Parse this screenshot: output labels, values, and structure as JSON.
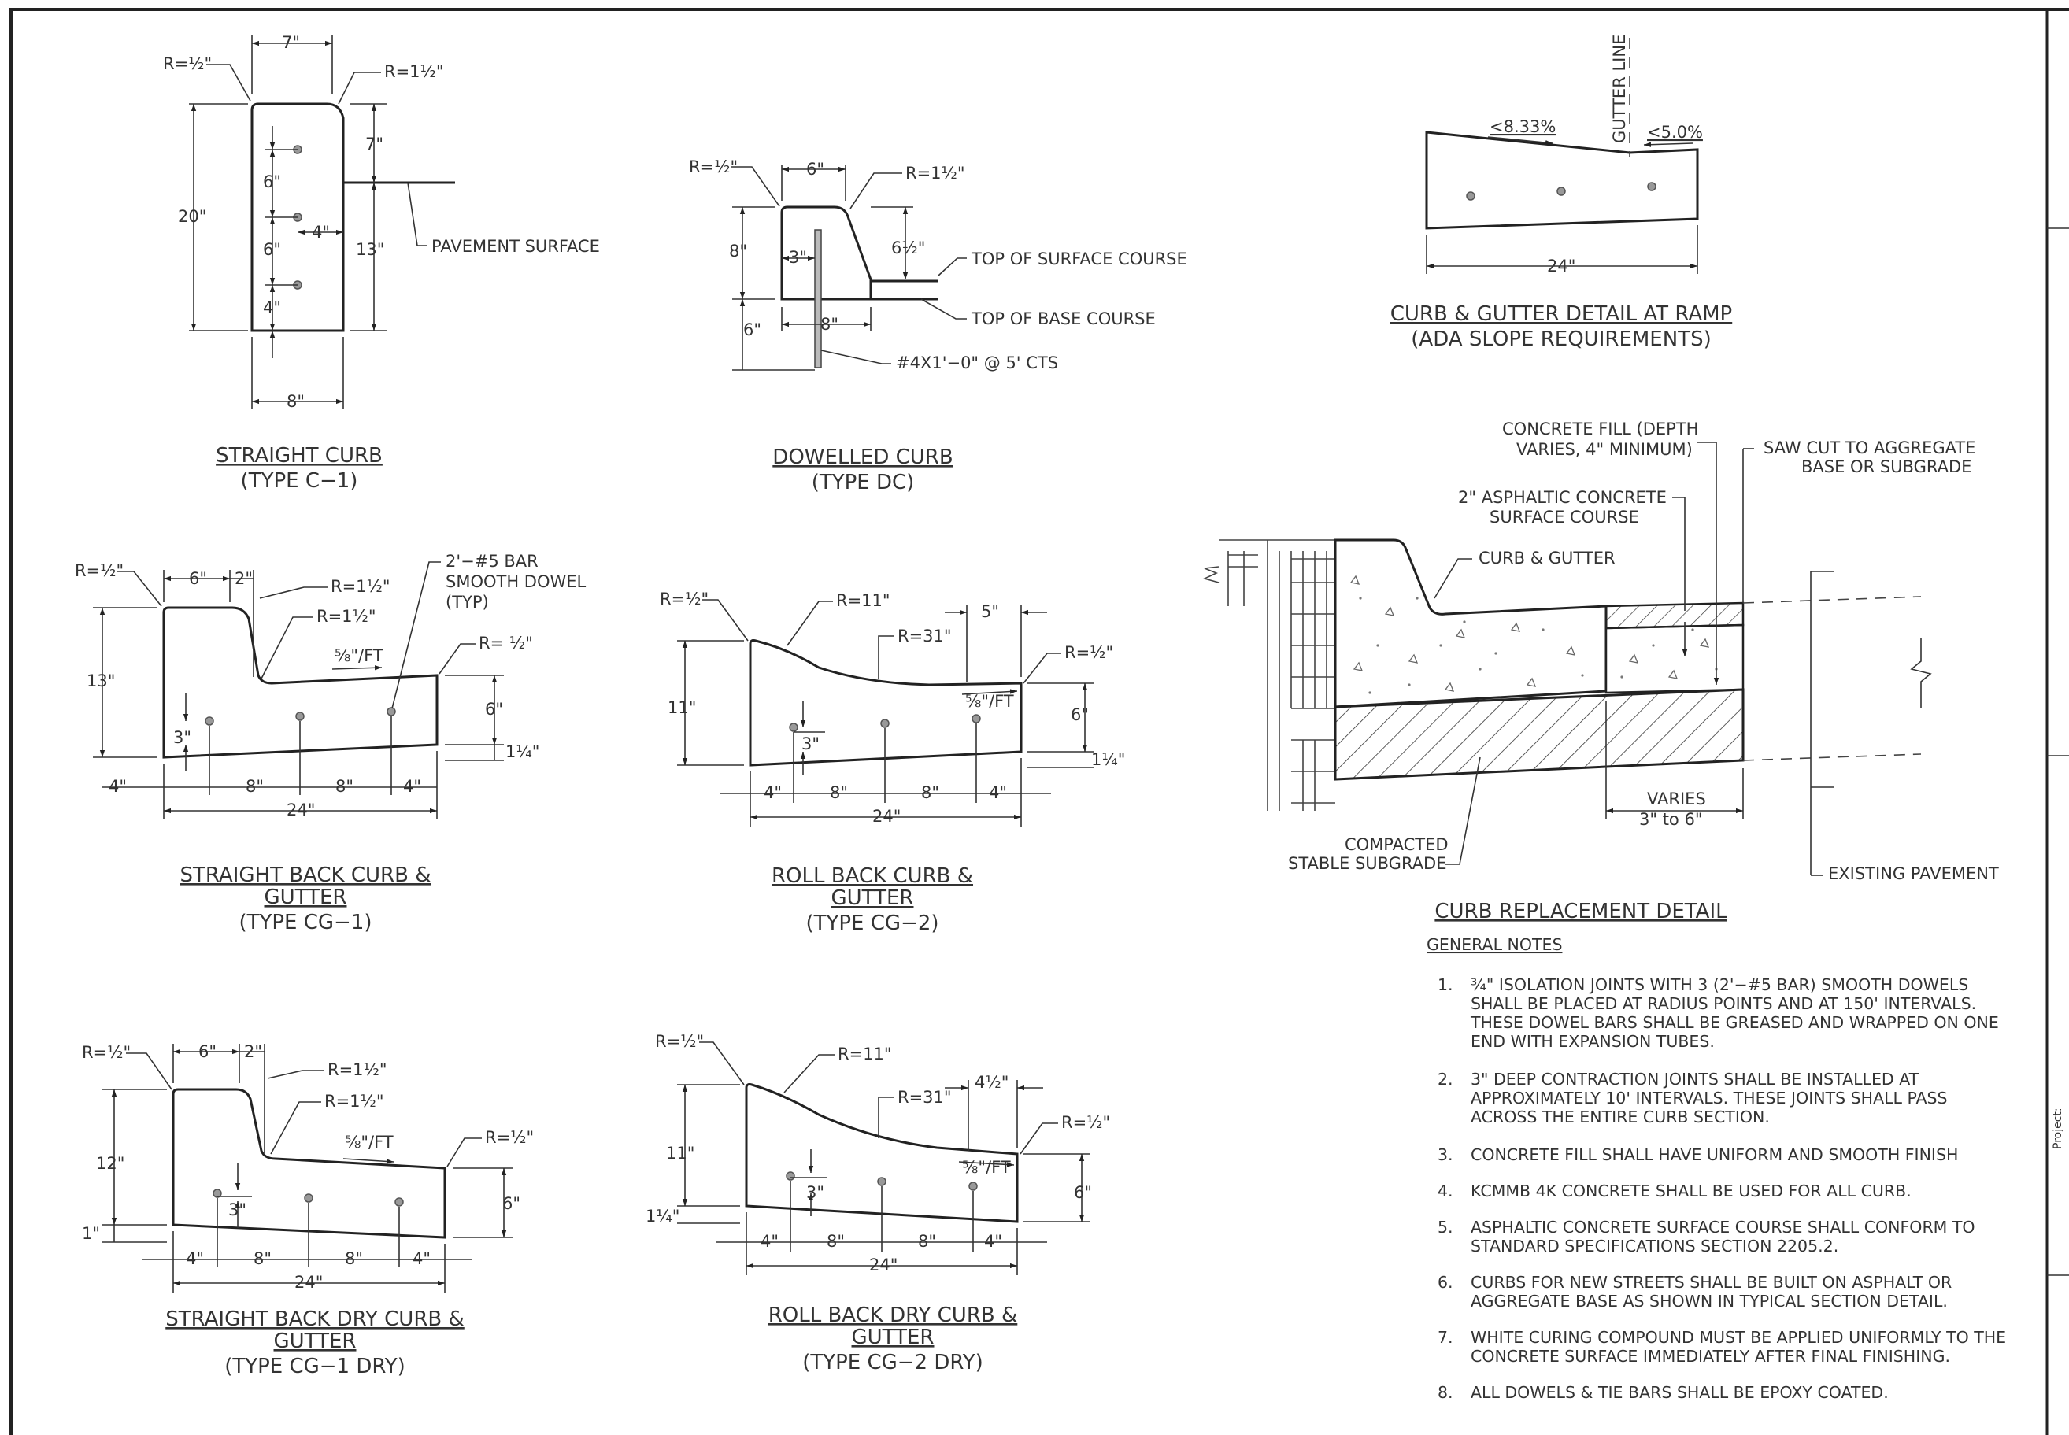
{
  "straight_curb": {
    "title": "STRAIGHT CURB",
    "subtitle": "(TYPE C−1)",
    "r_left": "R=½\"",
    "r_right": "R=1½\"",
    "top_width": "7\"",
    "height": "20\"",
    "d_7": "7\"",
    "d_6a": "6\"",
    "d_6b": "6\"",
    "d_4a": "4\"",
    "d_4b": "4\"",
    "d_13": "13\"",
    "base": "8\"",
    "pavement": "PAVEMENT SURFACE"
  },
  "dowelled_curb": {
    "title": "DOWELLED CURB",
    "subtitle": "(TYPE DC)",
    "r_left": "R=½\"",
    "r_right": "R=1½\"",
    "top_width": "6\"",
    "d_8": "8\"",
    "d_3": "3\"",
    "d_6": "6\"",
    "d_6half": "6½\"",
    "base": "8\"",
    "top_surface": "TOP OF SURFACE COURSE",
    "top_base": "TOP OF BASE COURSE",
    "dowel": "#4X1'−0\" @ 5' CTS"
  },
  "ramp": {
    "title": "CURB & GUTTER DETAIL AT RAMP",
    "subtitle": "(ADA SLOPE REQUIREMENTS)",
    "slope_left": "<8.33%",
    "slope_right": "<5.0%",
    "gutter_line": "GUTTER LINE",
    "width": "24\""
  },
  "cg1": {
    "title": "STRAIGHT BACK CURB &",
    "title2": "GUTTER",
    "subtitle": "(TYPE CG−1)",
    "r_left": "R=½\"",
    "d_6": "6\"",
    "d_2": "2\"",
    "r1": "R=1½\"",
    "r2": "R=1½\"",
    "bar": "2'−#5 BAR",
    "bar2": "SMOOTH DOWEL",
    "bar3": "(TYP)",
    "r_right": "R= ½\"",
    "slope": "⅝\"/FT",
    "d_13": "13\"",
    "d_3": "3\"",
    "d_6r": "6\"",
    "d_114": "1¼\"",
    "b1": "4\"",
    "b2": "8\"",
    "b3": "8\"",
    "b4": "4\"",
    "total": "24\""
  },
  "cg2": {
    "title": "ROLL BACK CURB &",
    "title2": "GUTTER",
    "subtitle": "(TYPE CG−2)",
    "r_left": "R=½\"",
    "r11": "R=11\"",
    "r31": "R=31\"",
    "d_5": "5\"",
    "r_right": "R=½\"",
    "slope": "⅝\"/FT",
    "d_11": "11\"",
    "d_3": "3\"",
    "d_6": "6\"",
    "d_114": "1¼\"",
    "b1": "4\"",
    "b2": "8\"",
    "b3": "8\"",
    "b4": "4\"",
    "total": "24\""
  },
  "cg1dry": {
    "title": "STRAIGHT BACK DRY CURB &",
    "title2": "GUTTER",
    "subtitle": "(TYPE CG−1 DRY)",
    "r_left": "R=½\"",
    "d_6": "6\"",
    "d_2": "2\"",
    "r1": "R=1½\"",
    "r2": "R=1½\"",
    "slope": "⅝\"/FT",
    "r_right": "R=½\"",
    "d_12": "12\"",
    "d_1": "1\"",
    "d_3": "3\"",
    "d_6r": "6\"",
    "b1": "4\"",
    "b2": "8\"",
    "b3": "8\"",
    "b4": "4\"",
    "total": "24\""
  },
  "cg2dry": {
    "title": "ROLL BACK DRY CURB &",
    "title2": "GUTTER",
    "subtitle": "(TYPE CG−2 DRY)",
    "r_left": "R=½\"",
    "r11": "R=11\"",
    "r31": "R=31\"",
    "d_4half": "4½\"",
    "r_right": "R=½\"",
    "slope": "⅝\"/FT",
    "d_11": "11\"",
    "d_114": "1¼\"",
    "d_3": "3\"",
    "d_6": "6\"",
    "b1": "4\"",
    "b2": "8\"",
    "b3": "8\"",
    "b4": "4\"",
    "total": "24\""
  },
  "replacement": {
    "title": "CURB REPLACEMENT DETAIL",
    "fill1": "CONCRETE FILL (DEPTH",
    "fill2": "VARIES, 4\" MINIMUM)",
    "saw1": "SAW CUT TO AGGREGATE",
    "saw2": "BASE OR SUBGRADE",
    "asph1": "2\" ASPHALTIC CONCRETE",
    "asph2": "SURFACE COURSE",
    "cg": "CURB & GUTTER",
    "varies1": "VARIES",
    "varies2": "3\" to 6\"",
    "compacted1": "COMPACTED",
    "compacted2": "STABLE SUBGRADE",
    "existing": "EXISTING PAVEMENT"
  },
  "notes": {
    "heading": "GENERAL NOTES",
    "items": [
      {
        "num": "1.",
        "lines": [
          "¾\" ISOLATION JOINTS WITH 3 (2'−#5 BAR) SMOOTH DOWELS",
          "SHALL BE PLACED AT RADIUS POINTS AND AT 150' INTERVALS.",
          "THESE DOWEL BARS SHALL BE GREASED AND WRAPPED ON ONE",
          "END WITH EXPANSION TUBES."
        ]
      },
      {
        "num": "2.",
        "lines": [
          "3\" DEEP CONTRACTION JOINTS SHALL BE INSTALLED AT",
          "APPROXIMATELY 10' INTERVALS. THESE JOINTS SHALL PASS",
          "ACROSS THE ENTIRE CURB SECTION."
        ]
      },
      {
        "num": "3.",
        "lines": [
          "CONCRETE FILL SHALL HAVE UNIFORM AND SMOOTH FINISH"
        ]
      },
      {
        "num": "4.",
        "lines": [
          "KCMMB 4K CONCRETE SHALL BE USED FOR ALL CURB."
        ]
      },
      {
        "num": "5.",
        "lines": [
          "ASPHALTIC CONCRETE SURFACE COURSE SHALL CONFORM TO",
          "STANDARD SPECIFICATIONS SECTION 2205.2."
        ]
      },
      {
        "num": "6.",
        "lines": [
          "CURBS FOR NEW STREETS SHALL BE BUILT ON ASPHALT OR",
          "AGGREGATE BASE AS SHOWN IN TYPICAL SECTION DETAIL."
        ]
      },
      {
        "num": "7.",
        "lines": [
          "WHITE CURING COMPOUND MUST BE APPLIED UNIFORMLY TO THE",
          "CONCRETE SURFACE IMMEDIATELY AFTER FINAL FINISHING."
        ]
      },
      {
        "num": "8.",
        "lines": [
          "ALL DOWELS & TIE BARS SHALL BE EPOXY COATED."
        ]
      }
    ]
  },
  "title_block": {
    "project": "Project:"
  }
}
